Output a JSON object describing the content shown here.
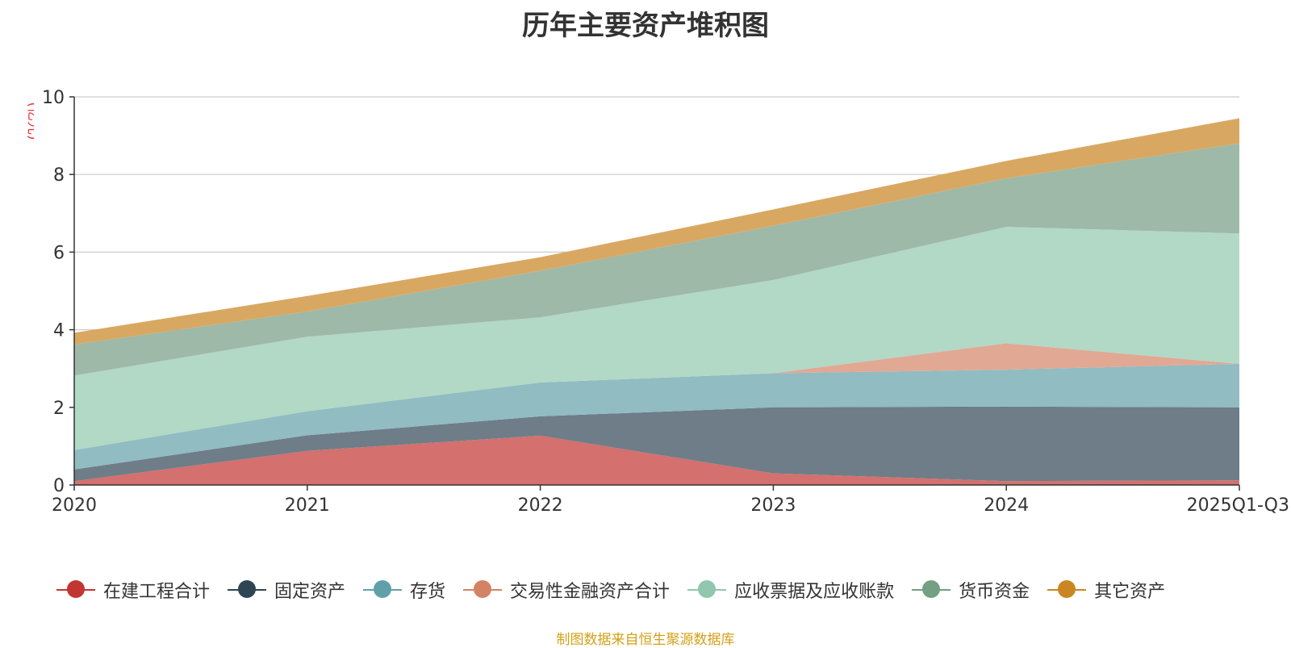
{
  "colors": {
    "title": "#333333",
    "unit": "#e8333a",
    "source": "#d4a017",
    "grid": "#cccccc",
    "axis": "#333333"
  },
  "chart_data": {
    "type": "area",
    "stacked": true,
    "title": "历年主要资产堆积图",
    "unit_label": "(亿元)",
    "source_note": "制图数据来自恒生聚源数据库",
    "categories": [
      "2020",
      "2021",
      "2022",
      "2023",
      "2024",
      "2025Q1-Q3"
    ],
    "ylim": [
      0,
      10
    ],
    "yticks": [
      0,
      2,
      4,
      6,
      8,
      10
    ],
    "grid": true,
    "legend_position": "bottom",
    "series": [
      {
        "name": "在建工程合计",
        "values": [
          0.1,
          0.88,
          1.27,
          0.3,
          0.1,
          0.12
        ],
        "color": "#c23531",
        "area_color": "#d4706d"
      },
      {
        "name": "固定资产",
        "values": [
          0.3,
          0.4,
          0.5,
          1.7,
          1.92,
          1.88
        ],
        "color": "#2f4554",
        "area_color": "#6e7d88"
      },
      {
        "name": "存货",
        "values": [
          0.5,
          0.62,
          0.87,
          0.88,
          0.95,
          1.12
        ],
        "color": "#61a0a8",
        "area_color": "#90bcc2"
      },
      {
        "name": "交易性金融资产合计",
        "values": [
          0.0,
          0.0,
          0.0,
          0.0,
          0.68,
          0.0
        ],
        "color": "#d48265",
        "area_color": "#e1a894"
      },
      {
        "name": "应收票据及应收账款",
        "values": [
          1.92,
          1.92,
          1.68,
          2.4,
          3.0,
          3.36
        ],
        "color": "#91c7ae",
        "area_color": "#b2d8c6"
      },
      {
        "name": "货币资金",
        "values": [
          0.8,
          0.65,
          1.2,
          1.4,
          1.25,
          2.32
        ],
        "color": "#749f83",
        "area_color": "#9eb9a7"
      },
      {
        "name": "其它资产",
        "values": [
          0.3,
          0.4,
          0.35,
          0.42,
          0.45,
          0.65
        ],
        "color": "#ca8622",
        "area_color": "#d8a862"
      }
    ]
  }
}
